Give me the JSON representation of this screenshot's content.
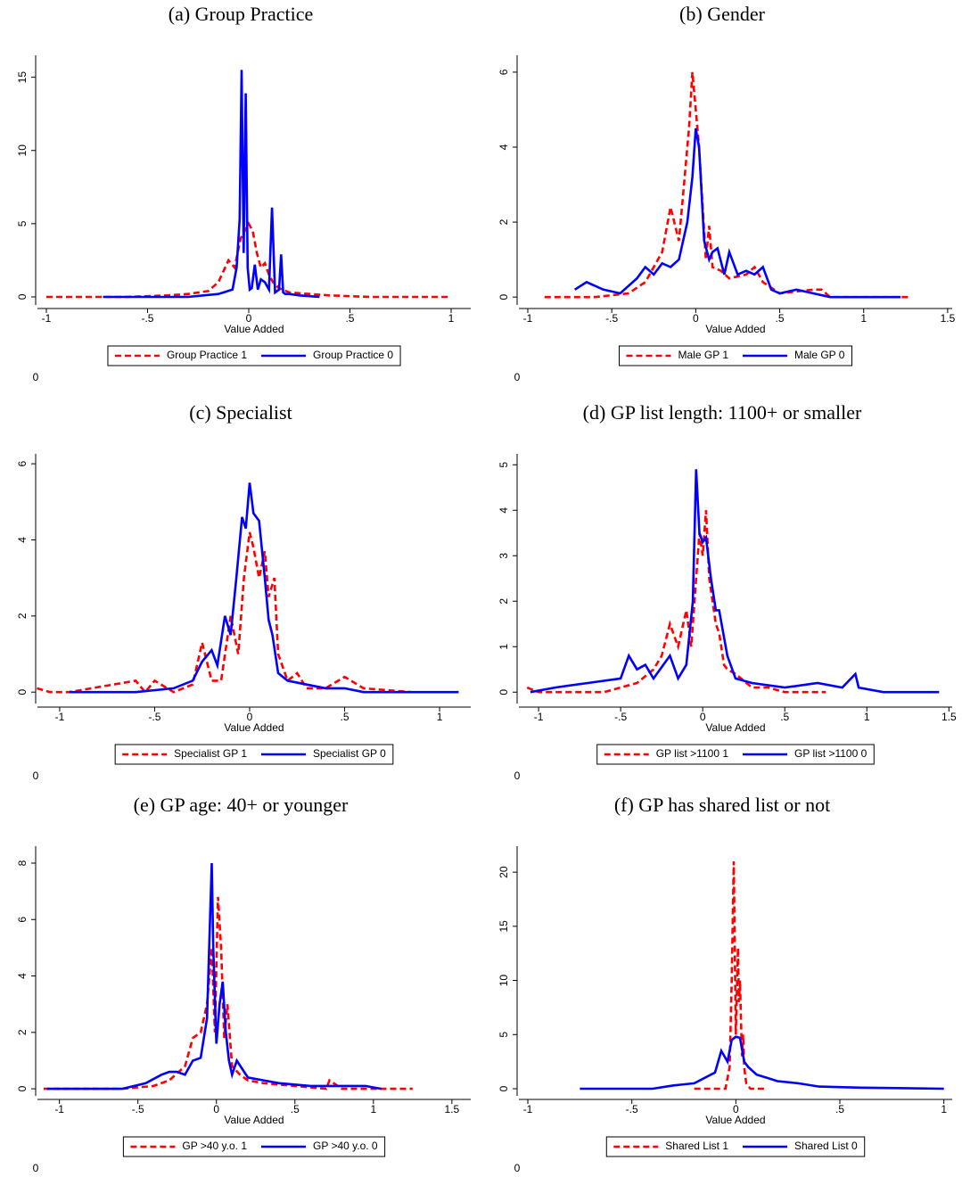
{
  "chart_data": [
    {
      "type": "line",
      "title": "(a) Group Practice",
      "x_label": "Value Added",
      "note": "0",
      "xlim": [
        -1.044,
        1.097
      ],
      "ylim": [
        -0.55,
        16.5
      ],
      "xticks": [
        -1,
        {
          "value": -0.5,
          "label": "-.5"
        },
        0,
        {
          "value": 0.5,
          "label": ".5"
        },
        1
      ],
      "yticks": [
        0,
        5,
        10,
        15
      ],
      "series": [
        {
          "name": "Group Practice 1",
          "color": "#ff0000",
          "style": "dashed",
          "x": [
            -1,
            -0.6,
            -0.4,
            -0.3,
            -0.2,
            -0.15,
            -0.1,
            -0.07,
            -0.04,
            -0.02,
            0,
            0.02,
            0.04,
            0.06,
            0.08,
            0.1,
            0.12,
            0.15,
            0.2,
            0.3,
            0.4,
            0.6,
            1
          ],
          "values": [
            0,
            0,
            0.1,
            0.2,
            0.4,
            1,
            2.5,
            2,
            4,
            4.5,
            5,
            4.5,
            3,
            2,
            2.3,
            1.5,
            1,
            0.6,
            0.3,
            0.2,
            0.1,
            0,
            0
          ]
        },
        {
          "name": "Group Practice 0",
          "color": "#0000ff",
          "style": "solid",
          "x": [
            -0.72,
            -0.3,
            -0.15,
            -0.08,
            -0.06,
            -0.045,
            -0.035,
            -0.025,
            -0.015,
            -0.005,
            0.005,
            0.015,
            0.03,
            0.045,
            0.06,
            0.08,
            0.1,
            0.115,
            0.13,
            0.15,
            0.16,
            0.17,
            0.18,
            0.2,
            0.25,
            0.35
          ],
          "values": [
            0,
            0,
            0.2,
            0.5,
            2,
            5.3,
            15.5,
            3,
            13.9,
            2,
            0.5,
            0.6,
            2.2,
            0.5,
            1.2,
            1,
            0.5,
            6.1,
            0.3,
            0.5,
            2.9,
            0.3,
            0.2,
            0.2,
            0.1,
            0
          ]
        }
      ]
    },
    {
      "type": "line",
      "title": "(b) Gender",
      "x_label": "Value Added",
      "note": "0",
      "xlim": [
        -1.053,
        1.527
      ],
      "ylim": [
        -0.21,
        6.45
      ],
      "xticks": [
        -1,
        {
          "value": -0.5,
          "label": "-.5"
        },
        0,
        {
          "value": 0.5,
          "label": ".5"
        },
        1,
        1.5
      ],
      "yticks": [
        0,
        2,
        4,
        6
      ],
      "series": [
        {
          "name": "Male GP 1",
          "color": "#ff0000",
          "style": "dashed",
          "x": [
            -0.9,
            -0.6,
            -0.4,
            -0.3,
            -0.25,
            -0.2,
            -0.15,
            -0.1,
            -0.07,
            -0.04,
            -0.02,
            0,
            0.02,
            0.04,
            0.06,
            0.08,
            0.1,
            0.15,
            0.2,
            0.3,
            0.35,
            0.4,
            0.5,
            0.7,
            0.75,
            0.8,
            1.27
          ],
          "values": [
            0,
            0,
            0.1,
            0.4,
            0.8,
            1.2,
            2.4,
            1.5,
            3,
            4.5,
            6,
            5,
            4,
            2.5,
            1,
            1.9,
            0.8,
            0.7,
            0.5,
            0.6,
            0.8,
            0.4,
            0.1,
            0.2,
            0.2,
            0,
            0
          ]
        },
        {
          "name": "Male GP 0",
          "color": "#0000ff",
          "style": "solid",
          "x": [
            -0.72,
            -0.65,
            -0.55,
            -0.45,
            -0.35,
            -0.3,
            -0.25,
            -0.2,
            -0.15,
            -0.1,
            -0.05,
            -0.02,
            0,
            0.02,
            0.05,
            0.08,
            0.1,
            0.13,
            0.17,
            0.2,
            0.25,
            0.3,
            0.35,
            0.4,
            0.45,
            0.5,
            0.6,
            0.7,
            0.8,
            1.22
          ],
          "values": [
            0.2,
            0.4,
            0.2,
            0.1,
            0.5,
            0.8,
            0.6,
            0.9,
            0.8,
            1,
            2,
            3.2,
            4.5,
            4,
            1.5,
            1,
            1.2,
            1.3,
            0.6,
            1.2,
            0.6,
            0.7,
            0.6,
            0.8,
            0.2,
            0.1,
            0.2,
            0.1,
            0,
            0
          ]
        }
      ]
    },
    {
      "type": "line",
      "title": "(c) Specialist",
      "x_label": "Value Added",
      "note": "0",
      "xlim": [
        -1.117,
        1.164
      ],
      "ylim": [
        -0.3,
        6.26
      ],
      "xticks": [
        -1,
        {
          "value": -0.5,
          "label": "-.5"
        },
        0,
        {
          "value": 0.5,
          "label": ".5"
        },
        1
      ],
      "yticks": [
        0,
        2,
        4,
        6
      ],
      "series": [
        {
          "name": "Specialist GP 1",
          "color": "#ff0000",
          "style": "dashed",
          "x": [
            -1.12,
            -1.05,
            -0.95,
            -0.6,
            -0.55,
            -0.5,
            -0.4,
            -0.3,
            -0.25,
            -0.2,
            -0.15,
            -0.1,
            -0.06,
            -0.03,
            0,
            0.02,
            0.05,
            0.08,
            0.1,
            0.13,
            0.15,
            0.2,
            0.25,
            0.3,
            0.4,
            0.5,
            0.6,
            0.85
          ],
          "values": [
            0.1,
            0,
            0,
            0.3,
            0,
            0.3,
            0,
            0.2,
            1.3,
            0.3,
            0.3,
            2,
            1,
            3,
            4.2,
            3.8,
            3,
            3.7,
            2.5,
            3,
            1,
            0.3,
            0.5,
            0.1,
            0.1,
            0.4,
            0.1,
            0
          ]
        },
        {
          "name": "Specialist GP 0",
          "color": "#0000ff",
          "style": "solid",
          "x": [
            -0.95,
            -0.6,
            -0.4,
            -0.3,
            -0.25,
            -0.2,
            -0.17,
            -0.13,
            -0.1,
            -0.07,
            -0.04,
            -0.02,
            0,
            0.02,
            0.05,
            0.08,
            0.1,
            0.12,
            0.15,
            0.2,
            0.3,
            0.4,
            0.5,
            0.6,
            1.1
          ],
          "values": [
            0,
            0,
            0.1,
            0.3,
            0.8,
            1.1,
            0.7,
            2,
            1.5,
            3,
            4.6,
            4.3,
            5.5,
            4.7,
            4.5,
            3,
            1.9,
            1.5,
            0.5,
            0.3,
            0.2,
            0.1,
            0.1,
            0,
            0
          ]
        }
      ]
    },
    {
      "type": "line",
      "title": "(d) GP list length: 1100+ or smaller",
      "x_label": "Value Added",
      "note": "0",
      "xlim": [
        -1.12,
        1.52
      ],
      "ylim": [
        -0.25,
        5.24
      ],
      "xticks": [
        -1,
        {
          "value": -0.5,
          "label": "-.5"
        },
        0,
        {
          "value": 0.5,
          "label": ".5"
        },
        1,
        1.5
      ],
      "yticks": [
        0,
        1,
        2,
        3,
        4,
        5
      ],
      "series": [
        {
          "name": "GP list >1100 1",
          "color": "#ff0000",
          "style": "dashed",
          "x": [
            -1.07,
            -1,
            -0.6,
            -0.4,
            -0.3,
            -0.25,
            -0.2,
            -0.15,
            -0.1,
            -0.07,
            -0.04,
            -0.02,
            0,
            0.02,
            0.04,
            0.06,
            0.08,
            0.1,
            0.13,
            0.15,
            0.2,
            0.3,
            0.4,
            0.5,
            0.75
          ],
          "values": [
            0.1,
            0,
            0,
            0.2,
            0.5,
            0.8,
            1.5,
            1,
            1.8,
            1,
            2.5,
            3.5,
            3,
            4,
            2.5,
            2,
            1.5,
            1.3,
            0.6,
            0.5,
            0.4,
            0.1,
            0.1,
            0,
            0
          ]
        },
        {
          "name": "GP list >1100 0",
          "color": "#0000ff",
          "style": "solid",
          "x": [
            -1.05,
            -0.9,
            -0.7,
            -0.5,
            -0.45,
            -0.4,
            -0.35,
            -0.3,
            -0.2,
            -0.15,
            -0.1,
            -0.06,
            -0.04,
            -0.02,
            0,
            0.02,
            0.05,
            0.08,
            0.1,
            0.15,
            0.2,
            0.3,
            0.5,
            0.7,
            0.85,
            0.93,
            0.95,
            1.1,
            1.44
          ],
          "values": [
            0,
            0.1,
            0.2,
            0.3,
            0.8,
            0.5,
            0.6,
            0.3,
            0.8,
            0.3,
            0.6,
            2,
            4.9,
            3.5,
            3.3,
            3.4,
            2.5,
            1.8,
            1.8,
            0.8,
            0.3,
            0.2,
            0.1,
            0.2,
            0.1,
            0.4,
            0.1,
            0,
            0
          ]
        }
      ]
    },
    {
      "type": "line",
      "title": "(e) GP age: 40+ or younger",
      "x_label": "Value Added",
      "note": "0",
      "xlim": [
        -1.14,
        1.62
      ],
      "ylim": [
        -0.25,
        8.6
      ],
      "xticks": [
        -1,
        {
          "value": -0.5,
          "label": "-.5"
        },
        0,
        {
          "value": 0.5,
          "label": ".5"
        },
        1,
        1.5
      ],
      "yticks": [
        0,
        2,
        4,
        6,
        8
      ],
      "series": [
        {
          "name": "GP >40 y.o. 1",
          "color": "#ff0000",
          "style": "dashed",
          "x": [
            -1.1,
            -0.6,
            -0.4,
            -0.3,
            -0.2,
            -0.15,
            -0.1,
            -0.06,
            -0.03,
            -0.01,
            0.01,
            0.03,
            0.05,
            0.07,
            0.1,
            0.15,
            0.2,
            0.3,
            0.5,
            0.7,
            0.72,
            0.8,
            1.25
          ],
          "values": [
            0,
            0,
            0.1,
            0.3,
            0.8,
            1.8,
            2,
            3,
            5,
            2,
            6.8,
            5,
            1.8,
            3,
            0.8,
            0.5,
            0.3,
            0.2,
            0.1,
            0,
            0.3,
            0,
            0
          ]
        },
        {
          "name": "GP >40 y.o. 0",
          "color": "#0000ff",
          "style": "solid",
          "x": [
            -1.08,
            -0.6,
            -0.45,
            -0.35,
            -0.3,
            -0.25,
            -0.2,
            -0.15,
            -0.1,
            -0.06,
            -0.03,
            -0.02,
            0,
            0.02,
            0.04,
            0.06,
            0.08,
            0.1,
            0.13,
            0.2,
            0.3,
            0.4,
            0.6,
            0.95,
            1.05
          ],
          "values": [
            0,
            0,
            0.2,
            0.5,
            0.6,
            0.6,
            0.5,
            1,
            1.1,
            2.5,
            8,
            5,
            1.6,
            3,
            3.8,
            2,
            1,
            0.5,
            1,
            0.4,
            0.3,
            0.2,
            0.1,
            0.1,
            0
          ]
        }
      ]
    },
    {
      "type": "line",
      "title": "(f) GP has shared list or not",
      "x_label": "Value Added",
      "note": "0",
      "xlim": [
        -1.043,
        1.04
      ],
      "ylim": [
        -0.66,
        22.4
      ],
      "xticks": [
        -1,
        {
          "value": -0.5,
          "label": "-.5"
        },
        0,
        {
          "value": 0.5,
          "label": ".5"
        },
        1
      ],
      "yticks": [
        0,
        5,
        10,
        15,
        20
      ],
      "series": [
        {
          "name": "Shared List 1",
          "color": "#ff0000",
          "style": "dashed",
          "x": [
            -0.2,
            -0.05,
            -0.03,
            -0.02,
            -0.01,
            0,
            0.01,
            0.015,
            0.02,
            0.025,
            0.03,
            0.035,
            0.04,
            0.05,
            0.07,
            0.15
          ],
          "values": [
            0,
            0,
            2,
            10,
            21,
            5,
            13,
            8,
            10,
            6,
            3,
            5,
            2,
            0.5,
            0,
            0
          ]
        },
        {
          "name": "Shared List 0",
          "color": "#0000ff",
          "style": "solid",
          "x": [
            -0.75,
            -0.4,
            -0.3,
            -0.2,
            -0.1,
            -0.07,
            -0.04,
            -0.02,
            0,
            0.02,
            0.04,
            0.06,
            0.1,
            0.15,
            0.2,
            0.3,
            0.4,
            0.6,
            1
          ],
          "values": [
            0,
            0,
            0.3,
            0.5,
            1.5,
            3.5,
            2.5,
            4.5,
            4.8,
            4.7,
            2.5,
            2,
            1.3,
            1,
            0.7,
            0.5,
            0.2,
            0.1,
            0
          ]
        }
      ]
    }
  ]
}
